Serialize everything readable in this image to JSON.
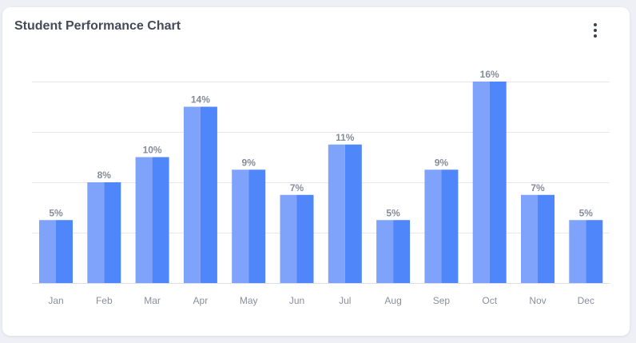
{
  "card": {
    "title": "Student Performance Chart",
    "menu_icon": "more-vertical-icon"
  },
  "colors": {
    "bar_left": "#7fa3fb",
    "bar_right": "#4f86f9",
    "value_label": "#888c99",
    "tick_label": "#8a8f9c",
    "gridline": "#e6e8ee"
  },
  "chart_data": {
    "type": "bar",
    "title": "Student Performance Chart",
    "xlabel": "",
    "ylabel": "",
    "categories": [
      "Jan",
      "Feb",
      "Mar",
      "Apr",
      "May",
      "Jun",
      "Jul",
      "Aug",
      "Sep",
      "Oct",
      "Nov",
      "Dec"
    ],
    "values": [
      5,
      8,
      10,
      14,
      9,
      7,
      11,
      5,
      9,
      16,
      7,
      5
    ],
    "value_labels": [
      "5%",
      "8%",
      "10%",
      "14%",
      "9%",
      "7%",
      "11%",
      "5%",
      "9%",
      "16%",
      "7%",
      "5%"
    ],
    "unit": "%",
    "ylim": [
      0,
      16
    ],
    "grid": true,
    "legend": "none"
  }
}
